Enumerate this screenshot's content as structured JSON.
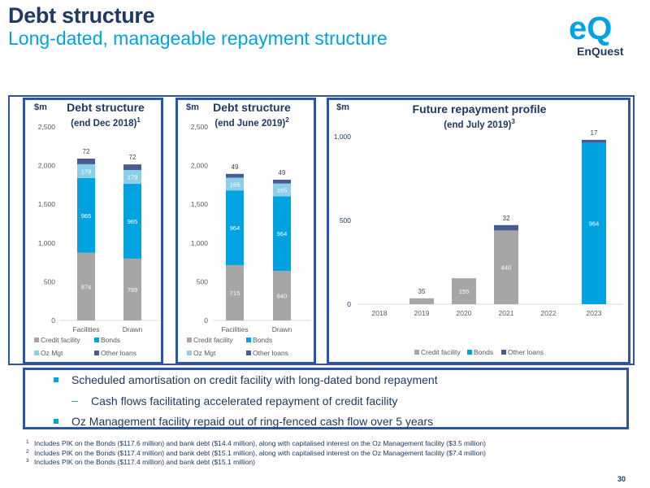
{
  "header": {
    "title": "Debt structure",
    "subtitle": "Long-dated, manageable repayment structure",
    "logo_text": "EnQuest",
    "logo_mark": "eQ"
  },
  "colors": {
    "navy": "#1f3864",
    "blue": "#2e54a4",
    "cyan": "#00a3e0",
    "light_blue": "#8ccfe8",
    "grey": "#a6a6a6",
    "dark_blue": "#4a5a93"
  },
  "chart_data": [
    {
      "type": "bar",
      "stacked": true,
      "unit": "$m",
      "title": "Debt structure",
      "subtitle": "(end Dec 2018)",
      "footnote_ref": "1",
      "categories": [
        "Facilities",
        "Drawn"
      ],
      "series": [
        {
          "name": "Credit facility",
          "values": [
            874,
            799
          ],
          "color": "#a6a6a6"
        },
        {
          "name": "Bonds",
          "values": [
            965,
            965
          ],
          "color": "#00a3e0"
        },
        {
          "name": "Oz Mgt",
          "values": [
            179,
            179
          ],
          "color": "#8ccfe8"
        },
        {
          "name": "Other loans",
          "values": [
            72,
            72
          ],
          "color": "#4a5a93"
        }
      ],
      "ylim": [
        0,
        2500
      ],
      "yticks": [
        "0",
        "500",
        "1,000",
        "1,500",
        "2,000",
        "2,500"
      ],
      "legend": "bottom"
    },
    {
      "type": "bar",
      "stacked": true,
      "unit": "$m",
      "title": "Debt structure",
      "subtitle": "(end June 2019)",
      "footnote_ref": "2",
      "categories": [
        "Facilities",
        "Drawn"
      ],
      "series": [
        {
          "name": "Credit facility",
          "values": [
            715,
            640
          ],
          "color": "#a6a6a6"
        },
        {
          "name": "Bonds",
          "values": [
            964,
            964
          ],
          "color": "#00a3e0"
        },
        {
          "name": "Oz Mgt",
          "values": [
            165,
            165
          ],
          "color": "#8ccfe8"
        },
        {
          "name": "Other loans",
          "values": [
            49,
            49
          ],
          "color": "#4a5a93"
        }
      ],
      "ylim": [
        0,
        2500
      ],
      "yticks": [
        "0",
        "500",
        "1,000",
        "1,500",
        "2,000",
        "2,500"
      ],
      "legend": "bottom"
    },
    {
      "type": "bar",
      "stacked": true,
      "unit": "$m",
      "title": "Future repayment profile",
      "subtitle": "(end July 2019)",
      "footnote_ref": "3",
      "categories": [
        "2018",
        "2019",
        "2020",
        "2021",
        "2022",
        "2023"
      ],
      "series": [
        {
          "name": "Credit facility",
          "values": [
            0,
            35,
            155,
            440,
            0,
            0
          ],
          "color": "#a6a6a6"
        },
        {
          "name": "Bonds",
          "values": [
            0,
            0,
            0,
            0,
            0,
            964
          ],
          "color": "#00a3e0"
        },
        {
          "name": "Other loans",
          "values": [
            0,
            0,
            0,
            32,
            0,
            17
          ],
          "color": "#4a5a93"
        }
      ],
      "ylim": [
        0,
        1000
      ],
      "yticks": [
        "0",
        "500",
        "1,000"
      ],
      "legend": "bottom"
    }
  ],
  "bullets": [
    {
      "text": "Scheduled amortisation on credit facility with long-dated bond repayment",
      "level": 1
    },
    {
      "text": "Cash flows facilitating accelerated repayment of credit facility",
      "level": 2
    },
    {
      "text": "Oz Management facility repaid out of ring-fenced cash flow over 5 years",
      "level": 1
    }
  ],
  "footnotes": [
    {
      "num": "1",
      "text": "Includes PIK on the Bonds ($117.6 million) and bank debt ($14.4 million), along with capitalised interest on the Oz Management facility ($3.5 million)"
    },
    {
      "num": "2",
      "text": "Includes PIK on the Bonds ($117.4 million) and bank debt ($15.1 million), along with capitalised interest on the Oz Management facility ($7.4 million)"
    },
    {
      "num": "3",
      "text": "Includes PIK on the Bonds ($117.4 million) and bank debt ($15.1 million)"
    }
  ],
  "page_number": "30"
}
